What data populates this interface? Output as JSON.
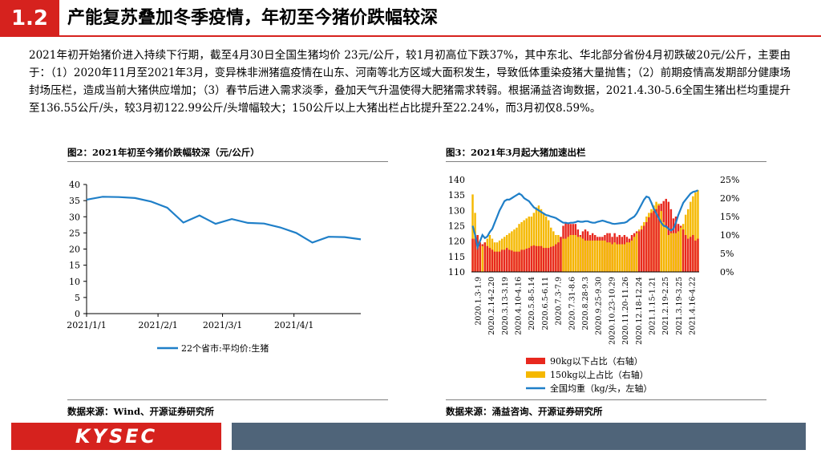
{
  "header": {
    "section_number": "1.2",
    "title": "产能复苏叠加冬季疫情，年初至今猪价跌幅较深"
  },
  "body_text": "2021年初开始猪价进入持续下行期，截至4月30日全国生猪均价 23元/公斤，较1月初高位下跌37%，其中东北、华北部分省份4月初跌破20元/公斤，主要由于：（1）2020年11月至2021年3月，变异株非洲猪瘟疫情在山东、河南等北方区域大面积发生，导致低体重染疫猪大量抛售；（2）前期疫情高发期部分健康场封场压栏，造成当前大猪供应增加；（3）春节后进入需求淡季，叠加天气升温使得大肥猪需求转弱。根据涌益咨询数据，2021.4.30-5.6全国生猪出栏均重提升至136.55公斤/头，较3月初122.99公斤/头增幅较大；150公斤以上大猪出栏占比提升至22.24%，而3月初仅8.59%。",
  "figure2": {
    "title": "图2：2021年初至今猪价跌幅较深（元/公斤）",
    "source": "数据来源：Wind、开源证券研究所"
  },
  "figure3": {
    "title": "图3：2021年3月起大猪加速出栏",
    "source": "数据来源：涌益咨询、开源证券研究所"
  },
  "footer": {
    "logo_text": "KYSEC"
  },
  "colors": {
    "accent_red": "#d6221e",
    "line_blue": "#1f7fc8",
    "bar_red": "#e8281e",
    "bar_yellow": "#f5b800",
    "footer_slate": "#4f6479"
  },
  "chart_data": [
    {
      "type": "line",
      "title": "",
      "x": [
        "2021/1/1",
        "2021/1/8",
        "2021/1/15",
        "2021/1/22",
        "2021/1/29",
        "2021/2/5",
        "2021/2/12",
        "2021/2/19",
        "2021/2/26",
        "2021/3/5",
        "2021/3/12",
        "2021/3/19",
        "2021/3/26",
        "2021/4/2",
        "2021/4/9",
        "2021/4/16",
        "2021/4/23",
        "2021/4/30"
      ],
      "x_tick_labels": [
        "2021/1/1",
        "2021/2/1",
        "2021/3/1",
        "2021/4/1"
      ],
      "x_tick_positions": [
        "2021/1/1",
        "2021/2/1",
        "2021/3/1",
        "2021/4/1"
      ],
      "series": [
        {
          "name": "22个省市:平均价:生猪",
          "values": [
            35.3,
            36.2,
            36.1,
            35.8,
            34.7,
            32.8,
            28.2,
            30.4,
            27.8,
            29.3,
            28.1,
            27.9,
            26.7,
            25.0,
            22.0,
            23.8,
            23.7,
            23.0
          ]
        }
      ],
      "ylim": [
        0,
        40
      ],
      "yticks": [
        0,
        5,
        10,
        15,
        20,
        25,
        30,
        35,
        40
      ],
      "legend": "bottom",
      "grid": false
    },
    {
      "type": "bar+line",
      "title": "",
      "x_tick_labels": [
        "2020.1.3-1.9",
        "2020.2.14-2.20",
        "2020.3.13-3.19",
        "2020.4.10-4.16",
        "2020.5.8-5.14",
        "2020.6.5-6.11",
        "2020.7.3-7.9",
        "2020.7.31-8.6",
        "2020.8.28-9.3",
        "2020.9.25-9.30",
        "2020.10.23-10.29",
        "2020.11.20-11.26",
        "2020.12.18-12.24",
        "2021.1.15-1.21",
        "2021.2.19-2.25",
        "2021.3.19-3.25",
        "2021.4.16-4.22"
      ],
      "left_ylim": [
        110,
        140
      ],
      "left_yticks": [
        110,
        115,
        120,
        125,
        130,
        135,
        140
      ],
      "right_ylim": [
        0,
        25
      ],
      "right_yticks": [
        "0%",
        "5%",
        "10%",
        "15%",
        "20%",
        "25%"
      ],
      "legend": "bottom",
      "grid": false,
      "series": [
        {
          "name": "90kg以下占比（右轴）",
          "axis": "right",
          "kind": "bar",
          "values": [
            9,
            9,
            10,
            8,
            7.5,
            8,
            7,
            6.5,
            6,
            5.5,
            5.5,
            5.5,
            6,
            6,
            6.5,
            6,
            5.8,
            5.5,
            5.5,
            5.5,
            6,
            6,
            6.3,
            6.5,
            7,
            7.2,
            7,
            7,
            7,
            6.5,
            6.5,
            6.5,
            6.8,
            7,
            7.5,
            8,
            9.5,
            12.5,
            13.5,
            13.2,
            13,
            13,
            13,
            11.5,
            10,
            11,
            11.5,
            11,
            10,
            10.5,
            10,
            9.5,
            9.5,
            9.5,
            10,
            10.5,
            10.5,
            9.5,
            10.5,
            9.5,
            10,
            9.5,
            10,
            9.5,
            9,
            10,
            10.5,
            11,
            11,
            11.5,
            12.5,
            13.5,
            14.8,
            16,
            16.5,
            17,
            18,
            18.5,
            19.2,
            19.8,
            19,
            17,
            14.5,
            15,
            13,
            12.5,
            11.5,
            10,
            9,
            9.5,
            10,
            8.5,
            9
          ]
        },
        {
          "name": "150kg以上占比（右轴）",
          "axis": "right",
          "kind": "bar",
          "values": [
            21,
            16,
            10,
            8,
            7,
            8,
            9,
            10,
            9,
            8,
            8,
            8.5,
            9,
            9.5,
            10,
            10.5,
            11,
            11.5,
            12,
            13,
            13.5,
            14,
            14.5,
            15,
            15,
            16,
            17.5,
            18,
            17,
            16,
            15,
            14,
            12,
            11,
            10,
            10,
            9.5,
            9,
            9,
            9.5,
            10,
            10,
            10,
            9.5,
            9.5,
            9,
            8.5,
            8.5,
            8.5,
            8.5,
            8.5,
            8.5,
            8.5,
            8.5,
            8.5,
            8,
            8,
            7.5,
            8,
            7.5,
            7.5,
            7.5,
            7.5,
            8,
            8,
            8.5,
            9.5,
            10.5,
            11.5,
            12.5,
            13.5,
            15,
            16,
            17,
            18,
            19,
            18.5,
            16.5,
            13.5,
            12,
            10,
            10.5,
            10.5,
            10.5,
            11,
            12,
            13,
            15.5,
            17,
            19,
            20.5,
            21.5,
            22.2
          ]
        },
        {
          "name": "全国均重（kg/头，左轴）",
          "axis": "left",
          "kind": "line",
          "values": [
            125,
            122,
            118,
            120,
            122,
            121,
            121.5,
            123,
            124,
            126,
            128,
            130,
            131.5,
            133,
            133.5,
            133.5,
            134,
            134.5,
            135,
            135.5,
            135,
            134,
            133.5,
            133,
            132,
            131,
            130.5,
            130,
            129.5,
            129,
            128.5,
            128.3,
            128,
            127.8,
            127.5,
            127,
            126.5,
            126,
            126,
            125.8,
            126,
            126,
            126.2,
            126.5,
            126.3,
            126.3,
            126.5,
            126.5,
            126.2,
            126,
            126,
            126.3,
            126.5,
            126.7,
            126.5,
            126.2,
            126,
            125.7,
            125.6,
            125.7,
            125.8,
            125.9,
            126,
            126.3,
            127,
            127.5,
            128,
            129,
            130.5,
            132,
            133.5,
            134.5,
            134.2,
            132.5,
            130.5,
            129,
            127.5,
            126,
            125,
            124.8,
            124,
            123.5,
            124,
            126,
            128.5,
            130.5,
            132.5,
            133.5,
            134.5,
            135.5,
            136,
            136.2,
            136.55
          ]
        }
      ]
    }
  ]
}
